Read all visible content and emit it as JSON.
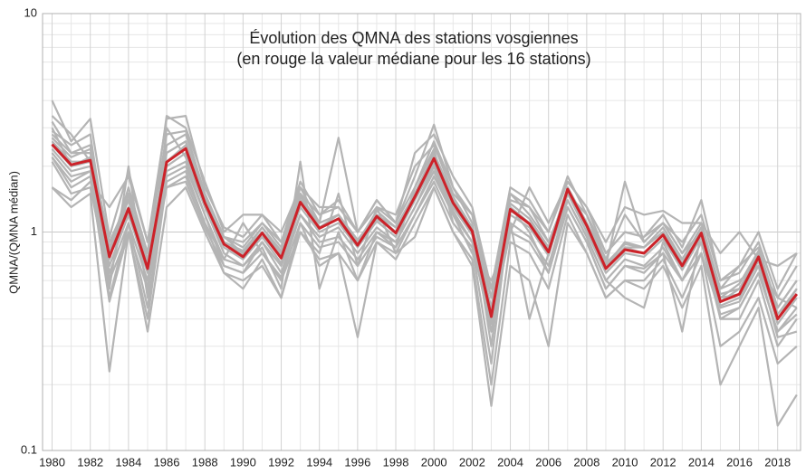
{
  "chart_data": {
    "type": "line",
    "title": "Évolution des QMNA des stations vosgiennes",
    "subtitle": "(en rouge la valeur médiane pour les 16 stations)",
    "y_label": "QMNA/(QMNA médian)",
    "y_log": true,
    "grid": true,
    "xlim": [
      1979.5,
      2019.2
    ],
    "ylim": [
      0.1,
      10
    ],
    "xticks": [
      1980,
      1982,
      1984,
      1986,
      1988,
      1990,
      1992,
      1994,
      1996,
      1998,
      2000,
      2002,
      2004,
      2006,
      2008,
      2010,
      2012,
      2014,
      2016,
      2018
    ],
    "xminorticks": [
      1981,
      1983,
      1985,
      1987,
      1989,
      1991,
      1993,
      1995,
      1997,
      1999,
      2001,
      2003,
      2005,
      2007,
      2009,
      2011,
      2013,
      2015,
      2017,
      2019
    ],
    "yticks": [
      0.1,
      1,
      10
    ],
    "yminorticks": [
      0.2,
      0.3,
      0.4,
      0.5,
      0.6,
      0.7,
      0.8,
      0.9,
      2,
      3,
      4,
      5,
      6,
      7,
      8,
      9
    ],
    "x": [
      1980,
      1981,
      1982,
      1983,
      1984,
      1985,
      1986,
      1987,
      1988,
      1989,
      1990,
      1991,
      1992,
      1993,
      1994,
      1995,
      1996,
      1997,
      1998,
      1999,
      2000,
      2001,
      2002,
      2003,
      2004,
      2005,
      2006,
      2007,
      2008,
      2009,
      2010,
      2011,
      2012,
      2013,
      2014,
      2015,
      2016,
      2017,
      2018,
      2019
    ],
    "series": [
      {
        "color": "#b4b4b4",
        "values": [
          4.0,
          2.6,
          3.3,
          0.95,
          1.9,
          0.9,
          3.3,
          3.4,
          1.6,
          1.05,
          0.95,
          1.2,
          0.9,
          1.7,
          1.2,
          1.4,
          1.0,
          1.4,
          1.1,
          1.8,
          3.1,
          1.6,
          1.2,
          0.55,
          1.6,
          1.4,
          1.0,
          1.7,
          1.3,
          0.8,
          1.0,
          0.95,
          1.2,
          0.85,
          1.4,
          0.6,
          0.65,
          0.9,
          0.5,
          0.7
        ]
      },
      {
        "color": "#b4b4b4",
        "values": [
          1.6,
          1.3,
          1.5,
          0.23,
          1.0,
          0.35,
          1.3,
          1.6,
          1.0,
          0.65,
          0.6,
          0.7,
          0.5,
          1.0,
          0.75,
          0.8,
          0.33,
          0.9,
          0.8,
          0.95,
          1.6,
          1.0,
          0.7,
          0.16,
          0.7,
          0.6,
          0.3,
          1.1,
          0.8,
          0.5,
          0.6,
          0.55,
          0.7,
          0.45,
          0.7,
          0.2,
          0.3,
          0.45,
          0.13,
          0.18
        ]
      },
      {
        "color": "#b4b4b4",
        "values": [
          3.2,
          2.3,
          2.5,
          0.6,
          1.5,
          0.8,
          2.8,
          2.9,
          1.5,
          0.95,
          0.85,
          1.1,
          0.85,
          1.6,
          1.1,
          2.7,
          1.0,
          1.4,
          1.1,
          1.6,
          2.6,
          1.6,
          1.1,
          0.3,
          1.4,
          1.3,
          0.9,
          1.5,
          1.2,
          0.7,
          1.7,
          0.9,
          1.1,
          0.8,
          1.1,
          0.55,
          0.7,
          0.85,
          0.45,
          0.6
        ]
      },
      {
        "color": "#b4b4b4",
        "values": [
          2.2,
          1.7,
          1.9,
          0.5,
          1.1,
          0.6,
          1.8,
          2.0,
          1.2,
          0.7,
          0.65,
          0.9,
          0.65,
          1.2,
          0.9,
          0.95,
          0.75,
          1.0,
          0.9,
          1.3,
          1.9,
          1.2,
          0.9,
          0.35,
          1.1,
          0.95,
          0.7,
          1.4,
          0.95,
          0.6,
          0.75,
          0.7,
          0.85,
          0.6,
          0.9,
          0.4,
          0.45,
          0.65,
          0.35,
          0.45
        ]
      },
      {
        "color": "#b4b4b4",
        "values": [
          2.8,
          2.3,
          2.3,
          0.85,
          1.4,
          0.75,
          2.3,
          2.6,
          1.4,
          0.95,
          0.8,
          1.05,
          0.8,
          1.4,
          1.1,
          1.2,
          0.9,
          1.25,
          1.05,
          1.5,
          2.3,
          1.45,
          1.05,
          0.45,
          1.35,
          1.15,
          0.85,
          1.6,
          1.1,
          0.7,
          0.9,
          0.85,
          1.0,
          0.75,
          1.05,
          0.52,
          0.55,
          0.8,
          0.42,
          0.55
        ]
      },
      {
        "color": "#b4b4b4",
        "values": [
          2.4,
          1.9,
          2.0,
          0.7,
          1.2,
          0.65,
          2.0,
          2.3,
          1.3,
          0.85,
          0.75,
          0.95,
          0.72,
          1.3,
          1.0,
          1.1,
          0.85,
          1.12,
          0.95,
          1.4,
          2.05,
          1.3,
          0.97,
          0.4,
          1.2,
          1.05,
          0.78,
          1.5,
          1.0,
          0.65,
          0.8,
          0.77,
          0.93,
          0.67,
          0.95,
          0.46,
          0.5,
          0.74,
          0.38,
          0.5
        ]
      },
      {
        "color": "#b4b4b4",
        "values": [
          1.6,
          1.4,
          1.7,
          1.3,
          1.8,
          0.9,
          1.6,
          1.8,
          1.1,
          0.75,
          1.1,
          0.8,
          0.6,
          1.0,
          0.8,
          1.5,
          0.7,
          1.3,
          0.8,
          1.2,
          1.8,
          1.2,
          0.8,
          0.6,
          1.0,
          1.6,
          1.1,
          1.7,
          1.3,
          0.9,
          1.3,
          1.2,
          1.25,
          1.1,
          1.1,
          0.8,
          1.0,
          0.75,
          0.7,
          0.8
        ]
      },
      {
        "color": "#b4b4b4",
        "values": [
          3.0,
          2.0,
          2.2,
          0.55,
          2.0,
          0.5,
          3.0,
          2.2,
          1.3,
          0.8,
          0.7,
          0.85,
          0.55,
          2.1,
          0.55,
          1.0,
          0.6,
          1.0,
          0.85,
          1.6,
          2.4,
          1.1,
          0.85,
          0.25,
          1.3,
          1.0,
          0.65,
          1.3,
          0.9,
          0.55,
          0.7,
          0.65,
          0.8,
          0.35,
          1.0,
          0.4,
          0.4,
          0.6,
          0.3,
          0.4
        ]
      },
      {
        "color": "#b4b4b4",
        "values": [
          2.6,
          2.1,
          2.1,
          0.9,
          1.3,
          0.7,
          2.1,
          2.5,
          1.4,
          0.9,
          0.8,
          1.0,
          0.8,
          1.5,
          1.05,
          1.2,
          0.9,
          1.2,
          1.0,
          1.5,
          2.2,
          1.4,
          1.0,
          0.45,
          1.3,
          1.1,
          0.85,
          1.6,
          1.1,
          0.7,
          0.85,
          0.85,
          1.0,
          0.7,
          1.0,
          0.5,
          0.52,
          0.8,
          0.4,
          0.52
        ]
      },
      {
        "color": "#b4b4b4",
        "values": [
          2.9,
          2.5,
          2.8,
          0.75,
          1.5,
          0.55,
          2.5,
          2.8,
          1.5,
          0.95,
          0.9,
          1.1,
          0.9,
          1.5,
          1.2,
          1.3,
          1.0,
          1.3,
          1.2,
          2.0,
          2.5,
          1.5,
          1.2,
          0.5,
          1.5,
          1.2,
          0.9,
          1.5,
          1.2,
          0.75,
          1.2,
          0.9,
          1.1,
          0.8,
          1.0,
          0.55,
          0.6,
          0.7,
          0.5,
          0.45
        ]
      },
      {
        "color": "#b4b4b4",
        "values": [
          2.3,
          1.8,
          1.9,
          0.65,
          1.1,
          0.45,
          1.9,
          2.1,
          1.2,
          0.75,
          0.7,
          0.9,
          0.7,
          1.2,
          0.95,
          1.05,
          0.8,
          1.05,
          0.9,
          1.3,
          2.0,
          1.25,
          0.9,
          0.35,
          1.1,
          0.4,
          0.8,
          1.4,
          0.95,
          0.6,
          0.5,
          0.45,
          0.9,
          0.6,
          0.9,
          0.45,
          0.48,
          0.7,
          0.33,
          0.35
        ]
      },
      {
        "color": "#b4b4b4",
        "values": [
          3.4,
          2.8,
          2.1,
          0.8,
          1.6,
          0.8,
          3.4,
          3.0,
          1.7,
          1.0,
          1.2,
          1.2,
          1.0,
          1.6,
          1.3,
          1.3,
          1.0,
          1.3,
          1.1,
          2.3,
          2.8,
          1.8,
          1.3,
          0.55,
          1.5,
          1.3,
          1.0,
          1.8,
          1.2,
          0.8,
          1.0,
          0.95,
          1.1,
          0.9,
          1.2,
          0.6,
          0.7,
          1.0,
          0.55,
          0.8
        ]
      },
      {
        "color": "#b4b4b4",
        "values": [
          2.5,
          2.0,
          2.1,
          0.8,
          1.25,
          0.7,
          2.1,
          2.4,
          1.35,
          0.88,
          0.78,
          1.0,
          0.78,
          1.35,
          1.05,
          1.15,
          0.88,
          1.15,
          1.0,
          1.45,
          2.15,
          1.35,
          1.0,
          0.42,
          1.25,
          1.1,
          0.82,
          1.55,
          1.05,
          0.68,
          0.85,
          0.8,
          0.98,
          0.72,
          1.0,
          0.48,
          0.55,
          0.78,
          0.4,
          0.55
        ]
      },
      {
        "color": "#b4b4b4",
        "values": [
          2.2,
          1.6,
          1.8,
          0.48,
          1.0,
          0.4,
          1.7,
          1.9,
          1.1,
          0.65,
          0.55,
          0.75,
          0.5,
          1.1,
          0.7,
          0.8,
          0.6,
          0.9,
          0.75,
          1.1,
          1.6,
          1.0,
          0.75,
          0.2,
          0.9,
          0.8,
          0.55,
          1.2,
          0.8,
          0.5,
          0.6,
          0.6,
          0.75,
          0.5,
          0.8,
          0.3,
          0.35,
          0.5,
          0.25,
          0.3
        ]
      },
      {
        "color": "#b4b4b4",
        "values": [
          2.7,
          2.2,
          2.4,
          0.9,
          1.4,
          0.72,
          2.3,
          2.6,
          1.45,
          0.9,
          0.82,
          1.05,
          0.82,
          1.45,
          1.1,
          1.2,
          0.92,
          1.2,
          1.05,
          1.5,
          2.3,
          1.4,
          1.05,
          0.5,
          1.35,
          1.15,
          0.85,
          1.6,
          1.1,
          0.72,
          0.88,
          0.85,
          1.05,
          0.75,
          1.05,
          0.5,
          0.58,
          0.82,
          0.45,
          0.6
        ]
      },
      {
        "color": "#b4b4b4",
        "values": [
          2.1,
          1.5,
          1.6,
          0.6,
          1.0,
          0.55,
          1.6,
          1.7,
          1.05,
          0.7,
          0.65,
          0.8,
          0.62,
          1.1,
          0.85,
          0.9,
          0.7,
          0.95,
          0.85,
          1.2,
          1.7,
          1.1,
          0.85,
          0.38,
          1.0,
          0.9,
          0.65,
          1.3,
          0.9,
          0.55,
          0.7,
          0.68,
          0.8,
          0.6,
          0.8,
          0.42,
          0.45,
          0.65,
          0.35,
          0.42
        ]
      },
      {
        "color": "#cc2229",
        "values": [
          2.52,
          2.03,
          2.13,
          0.77,
          1.28,
          0.68,
          2.09,
          2.41,
          1.36,
          0.88,
          0.77,
          0.99,
          0.76,
          1.37,
          1.04,
          1.15,
          0.87,
          1.18,
          0.99,
          1.45,
          2.17,
          1.36,
          1.01,
          0.41,
          1.27,
          1.09,
          0.81,
          1.57,
          1.07,
          0.68,
          0.83,
          0.8,
          0.97,
          0.7,
          0.99,
          0.48,
          0.52,
          0.77,
          0.4,
          0.52
        ]
      }
    ]
  }
}
